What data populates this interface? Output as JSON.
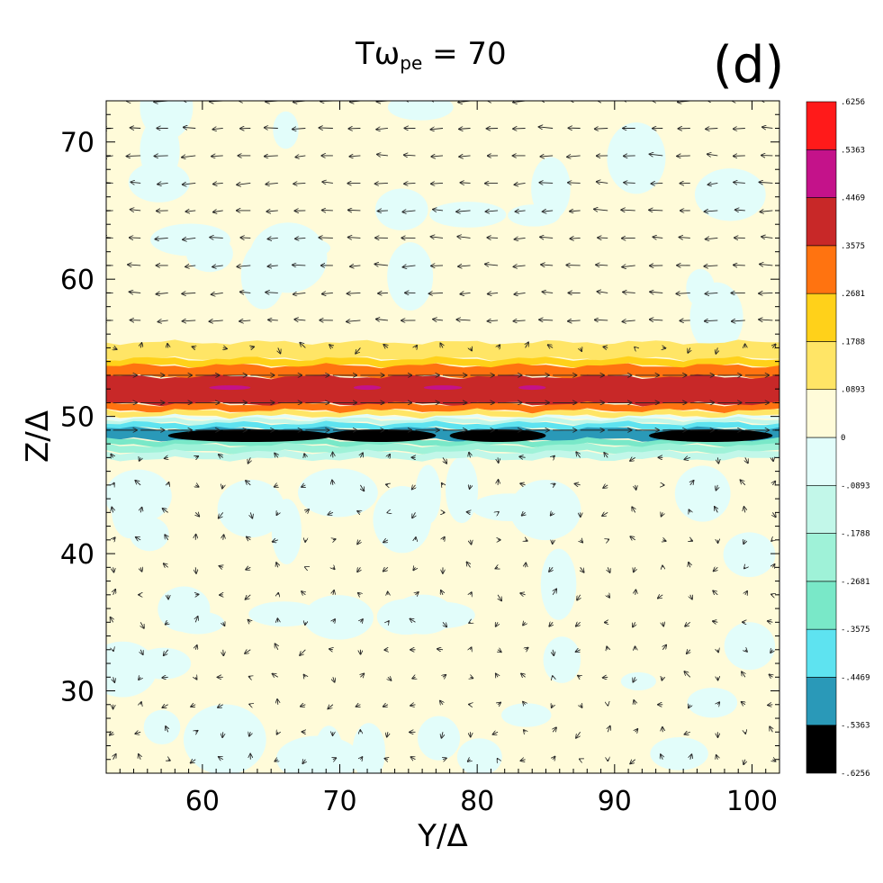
{
  "figure": {
    "title_prefix": "Tω",
    "title_sub": "pe",
    "title_suffix": "= 70",
    "panel_label": "(d)"
  },
  "chart_data": {
    "type": "heatmap",
    "title": "Tωpe = 70",
    "xlabel": "Y/Δ",
    "ylabel": "Z/Δ",
    "xlim": [
      53,
      102
    ],
    "ylim": [
      24,
      73
    ],
    "xticks": [
      60,
      70,
      80,
      90,
      100
    ],
    "yticks": [
      30,
      40,
      50,
      60,
      70
    ],
    "xtick_labels": [
      "60",
      "70",
      "80",
      "90",
      "100"
    ],
    "ytick_labels": [
      "30",
      "40",
      "50",
      "60",
      "70"
    ],
    "colorbar": {
      "levels": [
        -0.6256,
        -0.5363,
        -0.4469,
        -0.3575,
        -0.2681,
        -0.1788,
        -0.0893,
        0,
        0.0893,
        0.1788,
        0.2681,
        0.3575,
        0.4469,
        0.5363,
        0.6256
      ],
      "labels": [
        "-.6256",
        "-.5363",
        "-.4469",
        "-.3575",
        "-.2681",
        "-.1788",
        "-.0893",
        "0",
        ".0893",
        ".1788",
        ".2681",
        ".3575",
        ".4469",
        ".5363",
        ".6256"
      ],
      "colors": [
        "#000000",
        "#2a99b8",
        "#5ee3f0",
        "#79e8c8",
        "#9ff2d8",
        "#c2f7e9",
        "#e2fdfa",
        "#fffbd9",
        "#ffe566",
        "#ffd11a",
        "#ff7310",
        "#c82828",
        "#c4128a",
        "#ff1a1a"
      ]
    },
    "bands": [
      {
        "z": [
          54.2,
          55.4
        ],
        "value": 0.13
      },
      {
        "z": [
          53.7,
          54.2
        ],
        "value": 0.22
      },
      {
        "z": [
          52.9,
          53.7
        ],
        "value": 0.31
      },
      {
        "z": [
          50.9,
          52.9
        ],
        "value": 0.4
      },
      {
        "z": [
          50.4,
          50.9
        ],
        "value": 0.31
      },
      {
        "z": [
          50.0,
          50.4
        ],
        "value": 0.13
      },
      {
        "z": [
          49.8,
          50.0
        ],
        "value": -0.04
      },
      {
        "z": [
          49.5,
          49.8
        ],
        "value": -0.13
      },
      {
        "z": [
          49.1,
          49.5
        ],
        "value": -0.4
      },
      {
        "z": [
          48.3,
          49.1
        ],
        "value": -0.49
      },
      {
        "z": [
          47.9,
          48.3
        ],
        "value": -0.31
      },
      {
        "z": [
          47.4,
          47.9
        ],
        "value": -0.22
      },
      {
        "z": [
          46.9,
          47.4
        ],
        "value": -0.13
      }
    ],
    "vector_field": {
      "x_spacing": 2,
      "z_spacing": 2,
      "description": "arrows point left above Z=55, right inside the current sheet (Z 49-54), mixed below"
    }
  }
}
